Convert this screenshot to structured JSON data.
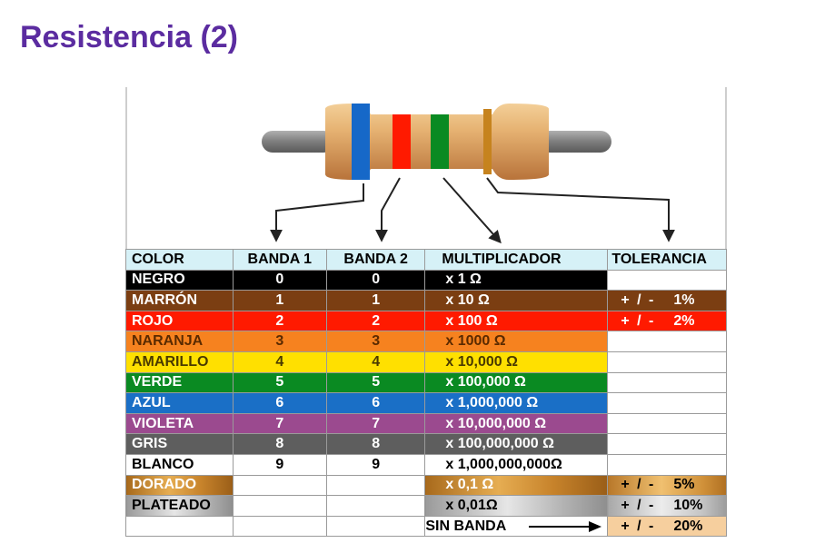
{
  "title": "Resistencia (2)",
  "headers": {
    "color": "COLOR",
    "banda1": "BANDA 1",
    "banda2": "BANDA 2",
    "multiplicador": "MULTIPLICADOR",
    "tolerancia": "TOLERANCIA"
  },
  "rows": [
    {
      "color": "NEGRO",
      "b1": "0",
      "b2": "0",
      "mult": "x 1 Ω",
      "tol_sign": "",
      "tol_pct": "",
      "bg": "#000000",
      "fg": "#ffffff",
      "tol_bg": "#ffffff",
      "tol_fg": "#000000"
    },
    {
      "color": "MARRÓN",
      "b1": "1",
      "b2": "1",
      "mult": "x 10 Ω",
      "tol_sign": "+ / -",
      "tol_pct": "1%",
      "bg": "#7b3e12",
      "fg": "#ffffff",
      "tol_bg": "#7b3e12",
      "tol_fg": "#ffffff"
    },
    {
      "color": "ROJO",
      "b1": "2",
      "b2": "2",
      "mult": "x 100 Ω",
      "tol_sign": "+ / -",
      "tol_pct": "2%",
      "bg": "#ff1a00",
      "fg": "#ffffff",
      "tol_bg": "#ff1a00",
      "tol_fg": "#ffffff"
    },
    {
      "color": "NARANJA",
      "b1": "3",
      "b2": "3",
      "mult": "x 1000 Ω",
      "tol_sign": "",
      "tol_pct": "",
      "bg": "#f6821f",
      "fg": "#5a2a00",
      "tol_bg": "#ffffff",
      "tol_fg": "#000000"
    },
    {
      "color": "AMARILLO",
      "b1": "4",
      "b2": "4",
      "mult": "x 10,000 Ω",
      "tol_sign": "",
      "tol_pct": "",
      "bg": "#ffe000",
      "fg": "#4a3a00",
      "tol_bg": "#ffffff",
      "tol_fg": "#000000"
    },
    {
      "color": "VERDE",
      "b1": "5",
      "b2": "5",
      "mult": "x 100,000 Ω",
      "tol_sign": "",
      "tol_pct": "",
      "bg": "#0a8a22",
      "fg": "#ffffff",
      "tol_bg": "#ffffff",
      "tol_fg": "#000000"
    },
    {
      "color": "AZUL",
      "b1": "6",
      "b2": "6",
      "mult": "x 1,000,000 Ω",
      "tol_sign": "",
      "tol_pct": "",
      "bg": "#1a6fc6",
      "fg": "#ffffff",
      "tol_bg": "#ffffff",
      "tol_fg": "#000000"
    },
    {
      "color": "VIOLETA",
      "b1": "7",
      "b2": "7",
      "mult": "x 10,000,000 Ω",
      "tol_sign": "",
      "tol_pct": "",
      "bg": "#9b4a8f",
      "fg": "#ffffff",
      "tol_bg": "#ffffff",
      "tol_fg": "#000000"
    },
    {
      "color": "GRIS",
      "b1": "8",
      "b2": "8",
      "mult": "x 100,000,000 Ω",
      "tol_sign": "",
      "tol_pct": "",
      "bg": "#5e5e5e",
      "fg": "#ffffff",
      "tol_bg": "#ffffff",
      "tol_fg": "#000000"
    },
    {
      "color": "BLANCO",
      "b1": "9",
      "b2": "9",
      "mult": "x 1,000,000,000Ω",
      "tol_sign": "",
      "tol_pct": "",
      "bg": "#ffffff",
      "fg": "#000000",
      "tol_bg": "#ffffff",
      "tol_fg": "#000000"
    },
    {
      "color": "DORADO",
      "b1": "",
      "b2": "",
      "mult": "x 0,1 Ω",
      "tol_sign": "+ / -",
      "tol_pct": "5%",
      "bg": "#d3952f",
      "fg": "#ffffff",
      "tol_bg": "#e6a645",
      "tol_fg": "#000000",
      "special": "gold"
    },
    {
      "color": "PLATEADO",
      "b1": "",
      "b2": "",
      "mult": "x 0,01Ω",
      "tol_sign": "+ / -",
      "tol_pct": "10%",
      "bg": "#c8c8c8",
      "fg": "#000000",
      "tol_bg": "#d2d2d2",
      "tol_fg": "#000000",
      "special": "silver"
    },
    {
      "color": "",
      "b1": "",
      "b2": "",
      "mult": "SIN BANDA",
      "tol_sign": "+ / -",
      "tol_pct": "20%",
      "bg": "#ffffff",
      "fg": "#000000",
      "tol_bg": "#f6cf9e",
      "tol_fg": "#000000",
      "special": "none"
    }
  ],
  "resistor": {
    "body_color": "#e0a562",
    "lead_color": "#8a8a8a",
    "bands": [
      "#1668c8",
      "#ff1a00",
      "#0a8a22",
      "#c6831e"
    ]
  }
}
